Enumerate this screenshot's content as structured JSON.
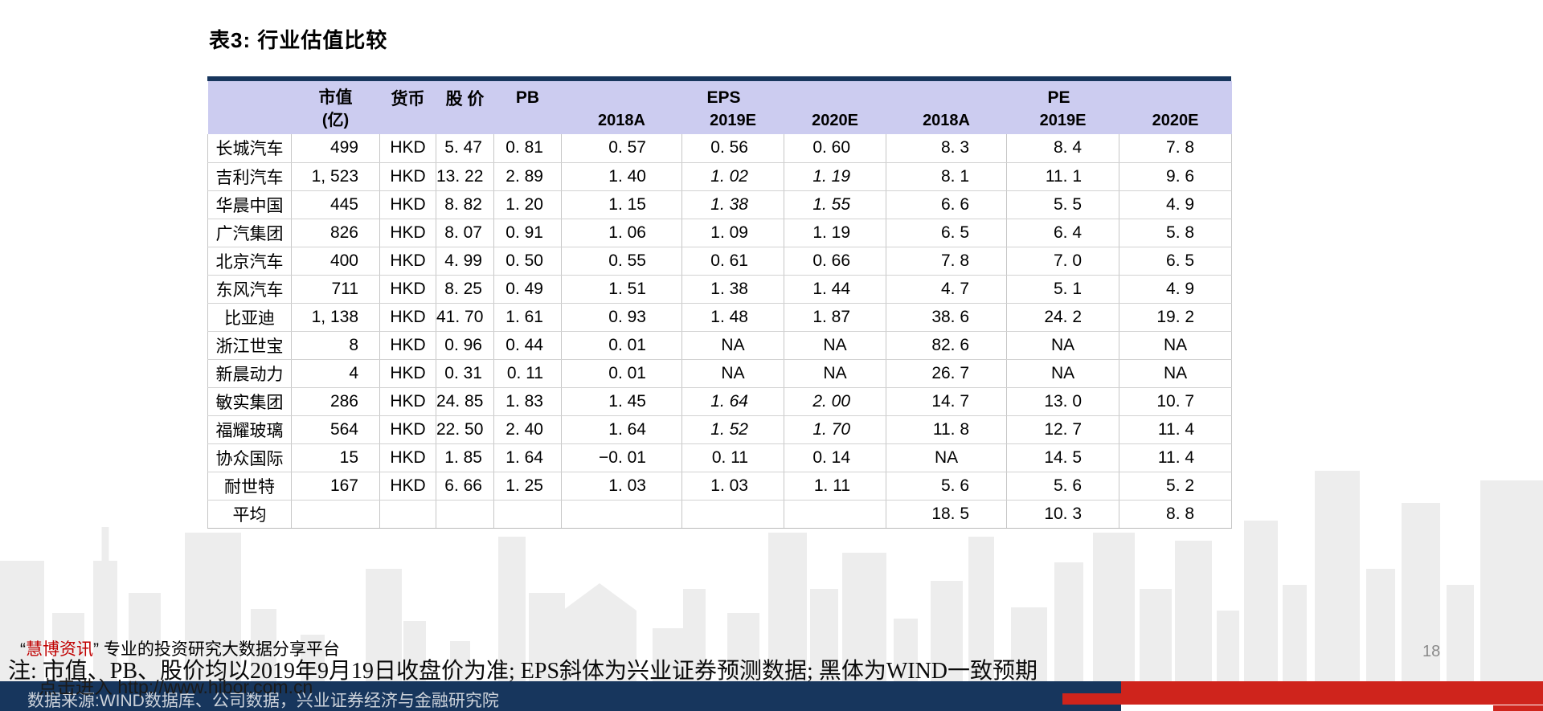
{
  "title": "表3: 行业估值比较",
  "table": {
    "header": {
      "market_cap": "市值",
      "market_cap_unit": "(亿)",
      "currency": "货币",
      "price": "股 价",
      "pb": "PB",
      "eps": "EPS",
      "pe": "PE",
      "eps_years": [
        "2018A",
        "2019E",
        "2020E"
      ],
      "pe_years": [
        "2018A",
        "2019E",
        "2020E"
      ]
    },
    "rows": [
      {
        "cells": [
          "长城汽车",
          "499",
          "HKD",
          "5. 47",
          "0. 81",
          "0. 57",
          "0. 56",
          "0. 60",
          "8. 3",
          "8. 4",
          "7. 8"
        ],
        "italic": []
      },
      {
        "cells": [
          "吉利汽车",
          "1, 523",
          "HKD",
          "13. 22",
          "2. 89",
          "1. 40",
          "1. 02",
          "1. 19",
          "8. 1",
          "11. 1",
          "9. 6"
        ],
        "italic": [
          6,
          7
        ]
      },
      {
        "cells": [
          "华晨中国",
          "445",
          "HKD",
          "8. 82",
          "1. 20",
          "1. 15",
          "1. 38",
          "1. 55",
          "6. 6",
          "5. 5",
          "4. 9"
        ],
        "italic": [
          6,
          7
        ]
      },
      {
        "cells": [
          "广汽集团",
          "826",
          "HKD",
          "8. 07",
          "0. 91",
          "1. 06",
          "1. 09",
          "1. 19",
          "6. 5",
          "6. 4",
          "5. 8"
        ],
        "italic": []
      },
      {
        "cells": [
          "北京汽车",
          "400",
          "HKD",
          "4. 99",
          "0. 50",
          "0. 55",
          "0. 61",
          "0. 66",
          "7. 8",
          "7. 0",
          "6. 5"
        ],
        "italic": []
      },
      {
        "cells": [
          "东风汽车",
          "711",
          "HKD",
          "8. 25",
          "0. 49",
          "1. 51",
          "1. 38",
          "1. 44",
          "4. 7",
          "5. 1",
          "4. 9"
        ],
        "italic": []
      },
      {
        "cells": [
          "比亚迪",
          "1, 138",
          "HKD",
          "41. 70",
          "1. 61",
          "0. 93",
          "1. 48",
          "1. 87",
          "38. 6",
          "24. 2",
          "19. 2"
        ],
        "italic": []
      },
      {
        "cells": [
          "浙江世宝",
          "8",
          "HKD",
          "0. 96",
          "0. 44",
          "0. 01",
          "NA",
          "NA",
          "82. 6",
          "NA",
          "NA"
        ],
        "italic": []
      },
      {
        "cells": [
          "新晨动力",
          "4",
          "HKD",
          "0. 31",
          "0. 11",
          "0. 01",
          "NA",
          "NA",
          "26. 7",
          "NA",
          "NA"
        ],
        "italic": []
      },
      {
        "cells": [
          "敏实集团",
          "286",
          "HKD",
          "24. 85",
          "1. 83",
          "1. 45",
          "1. 64",
          "2. 00",
          "14. 7",
          "13. 0",
          "10. 7"
        ],
        "italic": [
          6,
          7
        ]
      },
      {
        "cells": [
          "福耀玻璃",
          "564",
          "HKD",
          "22. 50",
          "2. 40",
          "1. 64",
          "1. 52",
          "1. 70",
          "11. 8",
          "12. 7",
          "11. 4"
        ],
        "italic": [
          6,
          7
        ]
      },
      {
        "cells": [
          "协众国际",
          "15",
          "HKD",
          "1. 85",
          "1. 64",
          "−0. 01",
          "0. 11",
          "0. 14",
          "NA",
          "14. 5",
          "11. 4"
        ],
        "italic": []
      },
      {
        "cells": [
          "耐世特",
          "167",
          "HKD",
          "6. 66",
          "1. 25",
          "1. 03",
          "1. 03",
          "1. 11",
          "5. 6",
          "5. 6",
          "5. 2"
        ],
        "italic": []
      },
      {
        "cells": [
          "平均",
          "",
          "",
          "",
          "",
          "",
          "",
          "",
          "18. 5",
          "10. 3",
          "8. 8"
        ],
        "italic": []
      }
    ]
  },
  "footer": {
    "watermark": {
      "quote_open": "“",
      "brand": "慧博资讯",
      "quote_close": "”",
      "tagline": "专业的投资研究大数据分享平台"
    },
    "note": "注: 市值、PB、股价均以2019年9月19日收盘价为准; EPS斜体为兴业证券预测数据; 黑体为WIND一致预期",
    "source": "数据来源:WIND数据库、公司数据，兴业证券经济与金融研究院",
    "hibor_link": "点击进入 http://www.hibor.com.cn"
  },
  "page": {
    "number": "18"
  },
  "colors": {
    "navy": "#17365d",
    "red": "#cf241c",
    "header_bg": "#ccccf0",
    "watermark_red": "#c00000",
    "skyline": "#ededed"
  }
}
